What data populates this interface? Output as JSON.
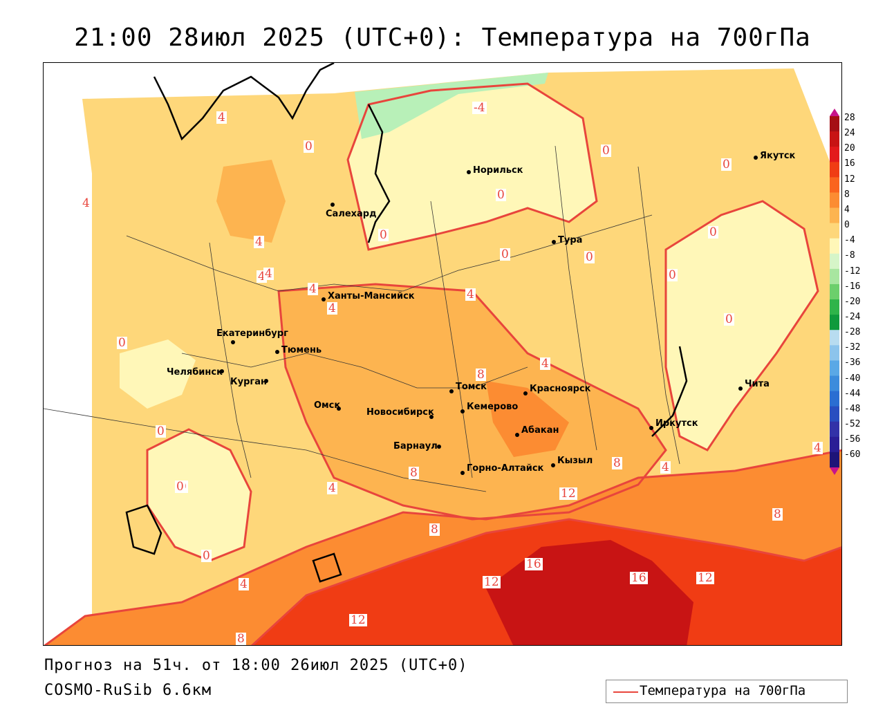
{
  "title": "21:00 28июл 2025 (UTC+0): Температура на 700гПа",
  "footer": {
    "forecast": "Прогноз на 51ч. от 18:00 26июл 2025 (UTC+0)",
    "model": "COSMO-RuSib 6.6км"
  },
  "legend": {
    "label": "Температура на 700гПа",
    "line_color": "#e8453c"
  },
  "colorbar": {
    "ticks": [
      "28",
      "24",
      "20",
      "16",
      "12",
      "8",
      "4",
      "0",
      "-4",
      "-8",
      "-12",
      "-16",
      "-20",
      "-24",
      "-28",
      "-32",
      "-36",
      "-40",
      "-44",
      "-48",
      "-52",
      "-56",
      "-60"
    ],
    "colors": [
      "#a50f15",
      "#c81414",
      "#e31a1c",
      "#f03c14",
      "#fa641e",
      "#fc8c32",
      "#fdb450",
      "#fed77a",
      "#fff7b8",
      "#d6f5c8",
      "#a8e6a0",
      "#6ccf6c",
      "#2fb44a",
      "#0f9a3c",
      "#b8dcf0",
      "#8cc4ec",
      "#5aa8e6",
      "#3c8cdc",
      "#2a6ed2",
      "#284ec0",
      "#3232a8",
      "#2a1e96",
      "#1e1478"
    ]
  },
  "cities": [
    {
      "name": "Якутск"
    },
    {
      "name": "Норильск"
    },
    {
      "name": "Салехард"
    },
    {
      "name": "Тура"
    },
    {
      "name": "Ханты-Мансийск"
    },
    {
      "name": "Екатеринбург"
    },
    {
      "name": "Тюмень"
    },
    {
      "name": "Челябинск"
    },
    {
      "name": "Курган"
    },
    {
      "name": "Томск"
    },
    {
      "name": "Красноярск"
    },
    {
      "name": "Омск"
    },
    {
      "name": "Новосибирск"
    },
    {
      "name": "Кемерово"
    },
    {
      "name": "Абакан"
    },
    {
      "name": "Барнаул"
    },
    {
      "name": "Горно-Алтайск"
    },
    {
      "name": "Кызыл"
    },
    {
      "name": "Иркутск"
    },
    {
      "name": "Чита"
    }
  ],
  "isolines": [
    {
      "value": "-4"
    },
    {
      "value": "4"
    },
    {
      "value": "0"
    },
    {
      "value": "0"
    },
    {
      "value": "0"
    },
    {
      "value": "4"
    },
    {
      "value": "4"
    },
    {
      "value": "0"
    },
    {
      "value": "0"
    },
    {
      "value": "0"
    },
    {
      "value": "0"
    },
    {
      "value": "0"
    },
    {
      "value": "4"
    },
    {
      "value": "4"
    },
    {
      "value": "4"
    },
    {
      "value": "4"
    },
    {
      "value": "4"
    },
    {
      "value": "0"
    },
    {
      "value": "0"
    },
    {
      "value": "0"
    },
    {
      "value": "0"
    },
    {
      "value": "8"
    },
    {
      "value": "4"
    },
    {
      "value": "0"
    },
    {
      "value": "4"
    },
    {
      "value": "8"
    },
    {
      "value": "8"
    },
    {
      "value": "8"
    },
    {
      "value": "4"
    },
    {
      "value": "12"
    },
    {
      "value": "8"
    },
    {
      "value": "16"
    },
    {
      "value": "16"
    },
    {
      "value": "12"
    },
    {
      "value": "12"
    },
    {
      "value": "12"
    },
    {
      "value": "4"
    },
    {
      "value": "8"
    },
    {
      "value": "0"
    },
    {
      "value": "4"
    },
    {
      "value": "0"
    }
  ]
}
